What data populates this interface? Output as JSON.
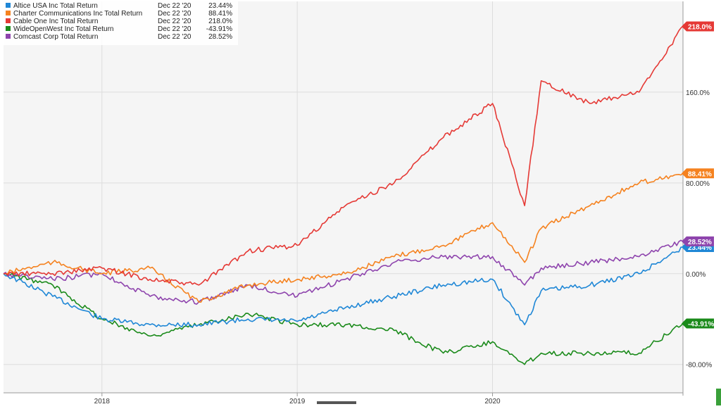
{
  "chart_data": {
    "type": "line",
    "x": [
      "2017-07",
      "2017-10",
      "2018-01",
      "2018-04",
      "2018-07",
      "2018-10",
      "2019-01",
      "2019-04",
      "2019-07",
      "2019-10",
      "2020-01",
      "2020-03",
      "2020-04",
      "2020-07",
      "2020-10",
      "2020-12-22"
    ],
    "xticks": [
      {
        "label": "2018",
        "value": "2018-01-01"
      },
      {
        "label": "2019",
        "value": "2019-01-01"
      },
      {
        "label": "2020",
        "value": "2020-01-01"
      }
    ],
    "yticks": [
      {
        "label": "160.0%",
        "value": 160
      },
      {
        "label": "80.00%",
        "value": 80
      },
      {
        "label": "0.00%",
        "value": 0
      },
      {
        "label": "-80.00%",
        "value": -80
      }
    ],
    "ylim": [
      -105,
      240
    ],
    "grid": true,
    "legend_position": "top-left",
    "series": [
      {
        "name": "Altice USA Inc Total Return",
        "date": "Dec 22 '20",
        "last_label": "23.44%",
        "color": "#1f87d6",
        "values": [
          0,
          -20,
          -40,
          -45,
          -45,
          -40,
          -42,
          -30,
          -20,
          -10,
          -5,
          -45,
          -15,
          -10,
          0,
          23.44
        ]
      },
      {
        "name": "Charter Communications Inc Total Return",
        "date": "Dec 22 '20",
        "last_label": "88.41%",
        "color": "#f5821f",
        "values": [
          0,
          10,
          0,
          5,
          -25,
          -10,
          -5,
          0,
          15,
          25,
          45,
          10,
          40,
          60,
          80,
          88.41
        ]
      },
      {
        "name": "Cable One Inc Total Return",
        "date": "Dec 22 '20",
        "last_label": "218.0%",
        "color": "#e53935",
        "values": [
          0,
          0,
          5,
          -5,
          -10,
          20,
          25,
          60,
          80,
          120,
          150,
          60,
          170,
          150,
          160,
          218.0
        ]
      },
      {
        "name": "WideOpenWest Inc Total Return",
        "date": "Dec 22 '20",
        "last_label": "-43.91%",
        "color": "#1a8a1a",
        "values": [
          0,
          -10,
          -40,
          -55,
          -45,
          -35,
          -45,
          -45,
          -50,
          -70,
          -60,
          -80,
          -70,
          -70,
          -70,
          -43.91
        ]
      },
      {
        "name": "Comcast Corp Total Return",
        "date": "Dec 22 '20",
        "last_label": "28.52%",
        "color": "#8e44ad",
        "values": [
          0,
          -5,
          0,
          -20,
          -25,
          -10,
          -20,
          -5,
          10,
          15,
          15,
          -10,
          5,
          10,
          15,
          28.52
        ]
      }
    ]
  }
}
